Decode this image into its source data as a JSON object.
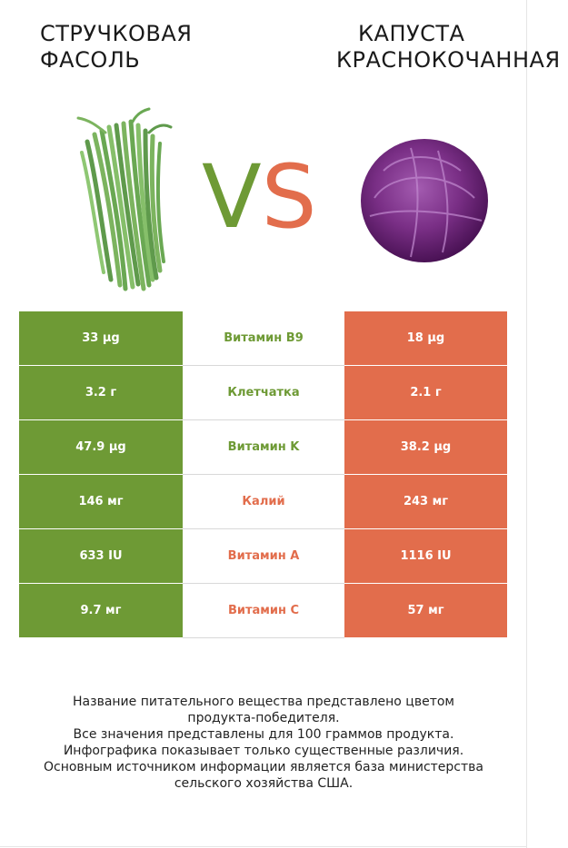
{
  "left_product": {
    "title_lines": [
      "СТРУЧКОВАЯ",
      "ФАСОЛЬ"
    ],
    "image_icon": "green-beans-photo",
    "color": "#6e9a35"
  },
  "right_product": {
    "title_lines": [
      "КАПУСТА",
      "КРАСНОКОЧАННАЯ"
    ],
    "image_icon": "red-cabbage-photo",
    "color": "#e26d4c"
  },
  "vs": {
    "v": "V",
    "s": "S"
  },
  "rows": [
    {
      "left": "33 µg",
      "nutrient": "Витамин B9",
      "right": "18 µg",
      "winner": "left"
    },
    {
      "left": "3.2 г",
      "nutrient": "Клетчатка",
      "right": "2.1 г",
      "winner": "left"
    },
    {
      "left": "47.9 µg",
      "nutrient": "Витамин K",
      "right": "38.2 µg",
      "winner": "left"
    },
    {
      "left": "146 мг",
      "nutrient": "Калий",
      "right": "243 мг",
      "winner": "right"
    },
    {
      "left": "633 IU",
      "nutrient": "Витамин A",
      "right": "1116 IU",
      "winner": "right"
    },
    {
      "left": "9.7 мг",
      "nutrient": "Витамин C",
      "right": "57 мг",
      "winner": "right"
    }
  ],
  "footer_lines": [
    "Название питательного вещества представлено цветом",
    "продукта-победителя.",
    "Все значения представлены для 100 граммов продукта.",
    "Инфографика показывает только существенные различия.",
    "Основным источником информации является база министерства",
    "сельского хозяйства США."
  ]
}
